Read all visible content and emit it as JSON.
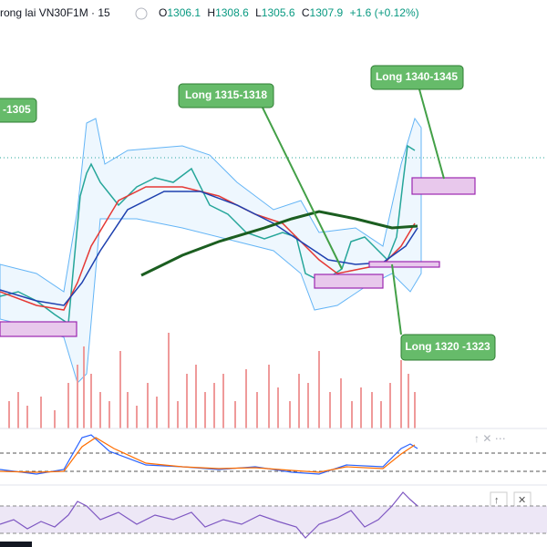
{
  "header": {
    "symbol": "rong lai VN30F1M · 15",
    "ohlc": [
      {
        "label": "O",
        "value": "1306.1"
      },
      {
        "label": "H",
        "value": "1308.6"
      },
      {
        "label": "L",
        "value": "1305.6"
      },
      {
        "label": "C",
        "value": "1307.9"
      }
    ],
    "change": "+1.6 (+0.12%)"
  },
  "annotations": [
    "-1305",
    "Long 1315-1318",
    "Long 1340-1345",
    "Long 1320 -1323"
  ]
}
